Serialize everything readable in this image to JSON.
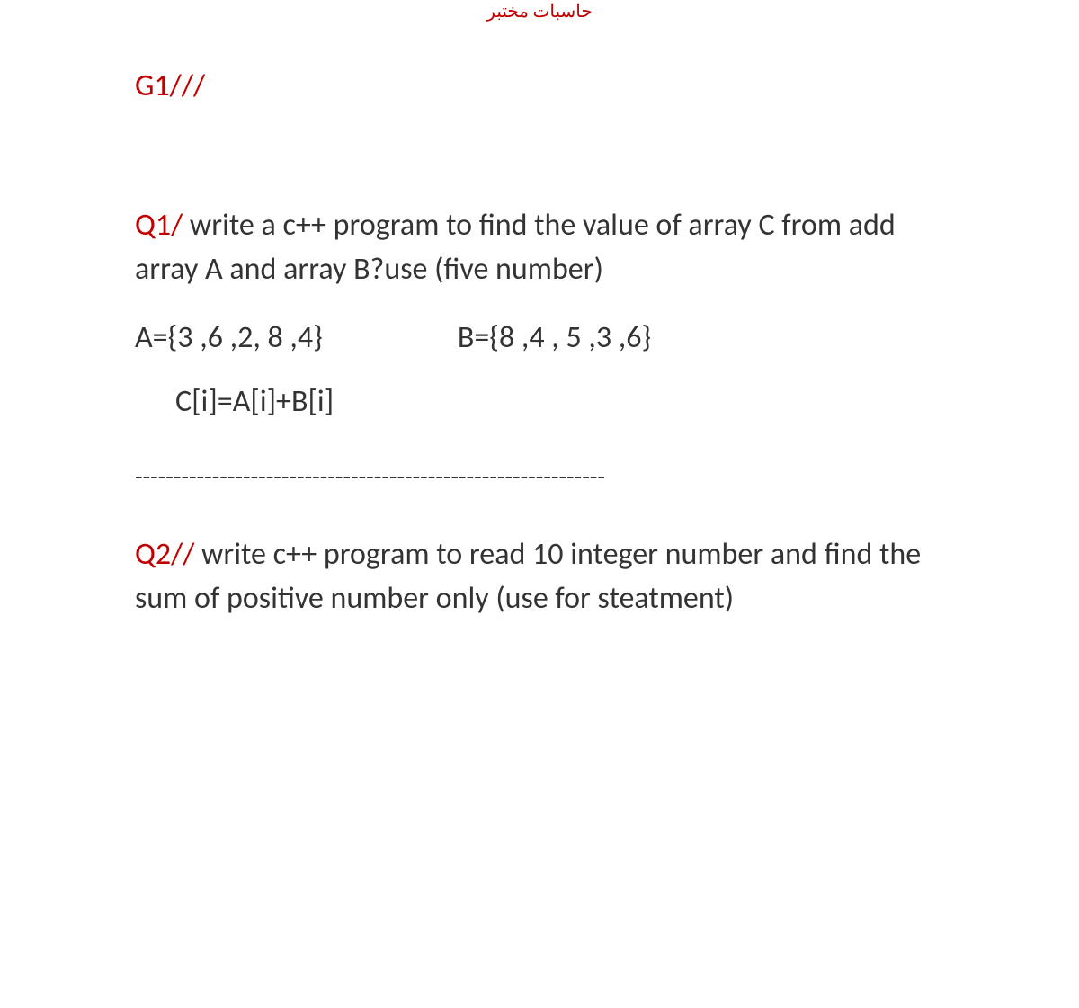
{
  "header": {
    "arabic_text": "حاسبات مختبر"
  },
  "group": {
    "label": "G1///"
  },
  "q1": {
    "label": "Q1/",
    "text_line1": " write a c++ program to find the value  of array C  from add array  A and array B?use (five number)",
    "array_a": "A={3 ,6 ,2, 8 ,4}",
    "array_b": "B={8 ,4 , 5 ,3 ,6}",
    "formula": "C[i]=A[i]+B[i]"
  },
  "divider": {
    "text": "-------------------------------------------------------------"
  },
  "q2": {
    "label": "Q2//",
    "text": " write c++ program to read 10 integer number and find the sum of positive number only (use for steatment)"
  },
  "colors": {
    "red": "#c00000",
    "text": "#333333",
    "background": "#ffffff"
  },
  "typography": {
    "body_fontsize": 34,
    "header_fontsize": 20,
    "line_height": 1.45
  }
}
